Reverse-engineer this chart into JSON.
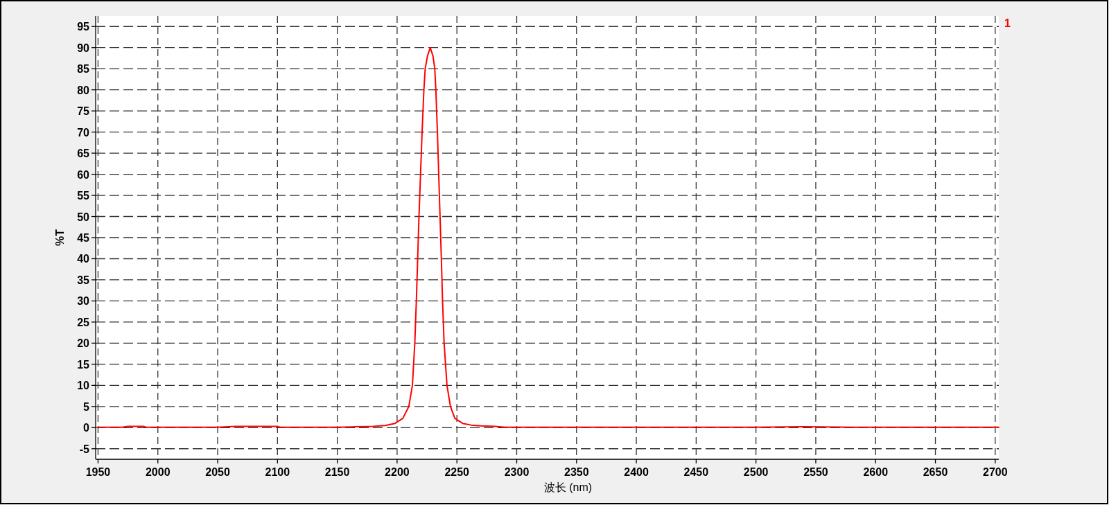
{
  "chart_data": {
    "type": "line",
    "xlabel": "波长 (nm)",
    "ylabel": "%T",
    "xlim": [
      1948,
      2703
    ],
    "ylim": [
      -7.5,
      97.5
    ],
    "xticks": [
      1950,
      2000,
      2050,
      2100,
      2150,
      2200,
      2250,
      2300,
      2350,
      2400,
      2450,
      2500,
      2550,
      2600,
      2650,
      2700
    ],
    "yticks": [
      -5,
      0,
      5,
      10,
      15,
      20,
      25,
      30,
      35,
      40,
      45,
      50,
      55,
      60,
      65,
      70,
      75,
      80,
      85,
      90,
      95
    ],
    "grid": true,
    "series": [
      {
        "name": "1",
        "color": "#ff0000",
        "x": [
          1950,
          1970,
          1975,
          1988,
          1990,
          2050,
          2065,
          2080,
          2100,
          2102,
          2150,
          2165,
          2180,
          2190,
          2198.3,
          2204.8,
          2209.8,
          2212.8,
          2214.8,
          2216.1,
          2217.2,
          2218.3,
          2219.6,
          2220.9,
          2222.4,
          2223.5,
          2225.4,
          2227.7,
          2230.0,
          2231.5,
          2232.4,
          2233.7,
          2234.8,
          2235.9,
          2237.0,
          2238.0,
          2239.3,
          2241.7,
          2244.6,
          2248.3,
          2254.8,
          2262,
          2270,
          2282,
          2290,
          2400,
          2450,
          2500,
          2540,
          2580,
          2630,
          2703
        ],
        "values": [
          0.1,
          0.1,
          0.3,
          0.3,
          0.1,
          0.1,
          0.3,
          0.3,
          0.3,
          0.1,
          0.1,
          0.2,
          0.3,
          0.5,
          1,
          2.2,
          5,
          10,
          20,
          30,
          40,
          50,
          60,
          70,
          80,
          85,
          88,
          90,
          88,
          85,
          80,
          70,
          60,
          50,
          40,
          30,
          20,
          10,
          5,
          2.2,
          1,
          0.6,
          0.4,
          0.3,
          0.1,
          0.1,
          0.1,
          0.1,
          0.2,
          0.1,
          0.1,
          0.1
        ]
      }
    ]
  }
}
